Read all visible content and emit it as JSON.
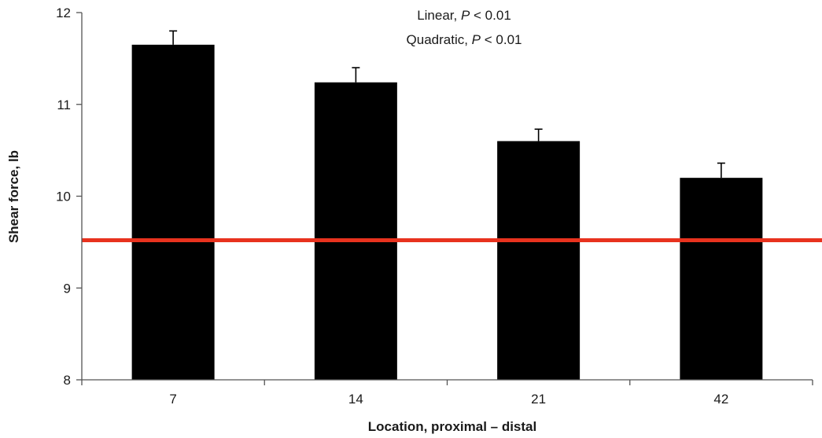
{
  "chart_data": {
    "type": "bar",
    "categories": [
      "7",
      "14",
      "21",
      "42"
    ],
    "values": [
      11.65,
      11.24,
      10.6,
      10.2
    ],
    "error_upper": [
      11.8,
      11.4,
      10.73,
      10.36
    ],
    "reference_line": 9.52,
    "xlabel": "Location, proximal – distal",
    "ylabel": "Shear force, lb",
    "ylim": [
      8,
      12
    ],
    "yticks": [
      "8",
      "9",
      "10",
      "11",
      "12"
    ],
    "grid": false,
    "annotations": [
      {
        "prefix": "Linear, ",
        "p": "P",
        "suffix": " < 0.01"
      },
      {
        "prefix": "Quadratic, ",
        "p": "P",
        "suffix": " < 0.01"
      }
    ],
    "colors": {
      "bar": "#000000",
      "reference_line": "#e8321e",
      "axis": "#555555"
    }
  }
}
